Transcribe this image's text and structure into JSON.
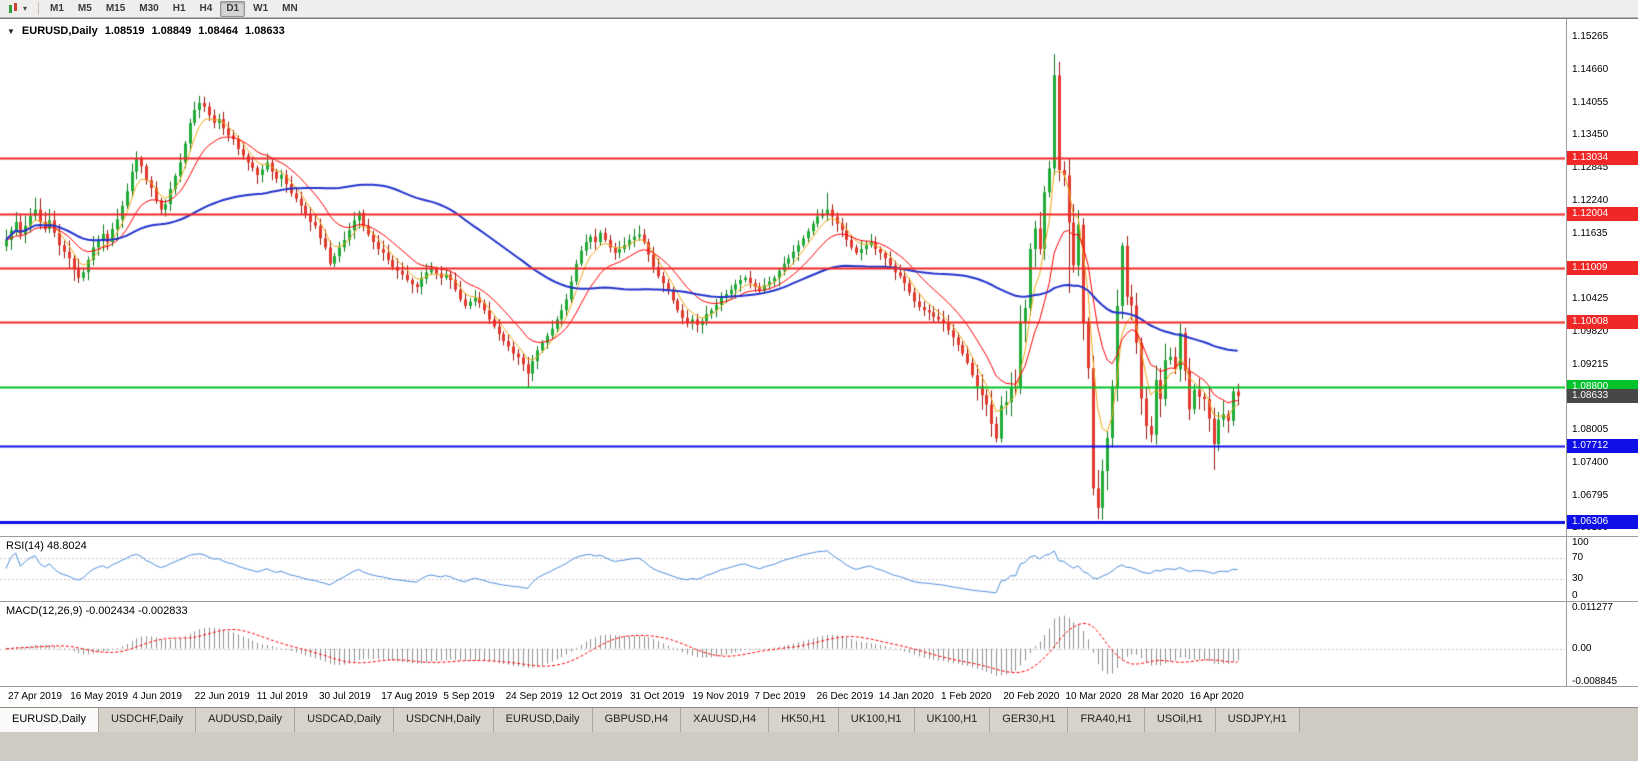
{
  "toolbar": {
    "timeframes": [
      {
        "label": "M1",
        "active": false
      },
      {
        "label": "M5",
        "active": false
      },
      {
        "label": "M15",
        "active": false
      },
      {
        "label": "M30",
        "active": false
      },
      {
        "label": "H1",
        "active": false
      },
      {
        "label": "H4",
        "active": false
      },
      {
        "label": "D1",
        "active": true
      },
      {
        "label": "W1",
        "active": false
      },
      {
        "label": "MN",
        "active": false
      }
    ]
  },
  "icons": {
    "dropdown_caret": "▾",
    "symbol_menu_caret": "▼"
  },
  "chart": {
    "title": {
      "symbol": "EURUSD,Daily",
      "open": "1.08519",
      "high": "1.08849",
      "low": "1.08464",
      "close": "1.08633"
    }
  },
  "chart_data": {
    "type": "candlestick",
    "symbol": "EURUSD",
    "timeframe": "Daily",
    "y_range": [
      1.0605,
      1.156
    ],
    "y_ticks": [
      {
        "v": 1.15265,
        "label": "1.15265"
      },
      {
        "v": 1.1466,
        "label": "1.14660"
      },
      {
        "v": 1.14055,
        "label": "1.14055"
      },
      {
        "v": 1.1345,
        "label": "1.13450"
      },
      {
        "v": 1.12845,
        "label": "1.12845"
      },
      {
        "v": 1.1224,
        "label": "1.12240"
      },
      {
        "v": 1.11635,
        "label": "1.11635"
      },
      {
        "v": 1.1103,
        "label": "1.11030"
      },
      {
        "v": 1.10425,
        "label": "1.10425"
      },
      {
        "v": 1.0982,
        "label": "1.09820"
      },
      {
        "v": 1.09215,
        "label": "1.09215"
      },
      {
        "v": 1.0861,
        "label": "1.08610"
      },
      {
        "v": 1.08005,
        "label": "1.08005"
      },
      {
        "v": 1.074,
        "label": "1.07400"
      },
      {
        "v": 1.06795,
        "label": "1.06795"
      },
      {
        "v": 1.0619,
        "label": "1.06190"
      }
    ],
    "x_labels": [
      "27 Apr 2019",
      "16 May 2019",
      "4 Jun 2019",
      "22 Jun 2019",
      "11 Jul 2019",
      "30 Jul 2019",
      "17 Aug 2019",
      "5 Sep 2019",
      "24 Sep 2019",
      "12 Oct 2019",
      "31 Oct 2019",
      "19 Nov 2019",
      "7 Dec 2019",
      "26 Dec 2019",
      "14 Jan 2020",
      "1 Feb 2020",
      "20 Feb 2020",
      "10 Mar 2020",
      "28 Mar 2020",
      "16 Apr 2020"
    ],
    "first_open": 1.114,
    "closes": [
      1.1152,
      1.117,
      1.1185,
      1.1162,
      1.1178,
      1.1196,
      1.1208,
      1.1185,
      1.1172,
      1.1188,
      1.1165,
      1.1142,
      1.113,
      1.1118,
      1.1098,
      1.1082,
      1.1092,
      1.1115,
      1.1138,
      1.1152,
      1.1163,
      1.1148,
      1.1172,
      1.119,
      1.1215,
      1.1242,
      1.1278,
      1.1302,
      1.1288,
      1.1262,
      1.1248,
      1.1225,
      1.1208,
      1.1218,
      1.1246,
      1.127,
      1.1295,
      1.133,
      1.1368,
      1.1392,
      1.1405,
      1.1398,
      1.1382,
      1.1368,
      1.1375,
      1.1358,
      1.1345,
      1.1338,
      1.132,
      1.1308,
      1.1295,
      1.1285,
      1.1272,
      1.1282,
      1.1295,
      1.1278,
      1.1265,
      1.1272,
      1.1255,
      1.1238,
      1.1228,
      1.1215,
      1.1198,
      1.1185,
      1.1178,
      1.1155,
      1.1138,
      1.1108,
      1.1122,
      1.1138,
      1.1152,
      1.117,
      1.1188,
      1.1202,
      1.1178,
      1.1162,
      1.1148,
      1.1135,
      1.1128,
      1.1115,
      1.1102,
      1.1095,
      1.1088,
      1.1078,
      1.107,
      1.1065,
      1.108,
      1.1092,
      1.1098,
      1.109,
      1.1082,
      1.1088,
      1.1078,
      1.106,
      1.1042,
      1.103,
      1.1038,
      1.1045,
      1.1035,
      1.1022,
      1.1005,
      1.0992,
      1.0978,
      1.0965,
      1.0955,
      1.0942,
      1.0935,
      1.0922,
      1.0905,
      1.0928,
      1.0948,
      1.0962,
      1.0975,
      1.0988,
      1.1005,
      1.1022,
      1.1042,
      1.1075,
      1.1108,
      1.1132,
      1.1148,
      1.1158,
      1.1148,
      1.1165,
      1.1152,
      1.1138,
      1.1128,
      1.1135,
      1.1142,
      1.1152,
      1.1158,
      1.1162,
      1.1148,
      1.1125,
      1.1102,
      1.1085,
      1.1072,
      1.1058,
      1.104,
      1.1022,
      1.1008,
      1.0998,
      1.1005,
      1.0995,
      1.1002,
      1.1015,
      1.1022,
      1.1032,
      1.1045,
      1.1052,
      1.106,
      1.107,
      1.1078,
      1.1082,
      1.1072,
      1.1065,
      1.1058,
      1.1068,
      1.1075,
      1.1082,
      1.1095,
      1.1108,
      1.1118,
      1.113,
      1.1142,
      1.1155,
      1.1168,
      1.1182,
      1.1195,
      1.12,
      1.1208,
      1.1195,
      1.1182,
      1.117,
      1.1152,
      1.1138,
      1.1128,
      1.1135,
      1.1142,
      1.1148,
      1.1135,
      1.1128,
      1.1118,
      1.1105,
      1.1092,
      1.1085,
      1.1072,
      1.1055,
      1.1038,
      1.1028,
      1.1022,
      1.1018,
      1.101,
      1.1005,
      1.0998,
      1.0985,
      1.0972,
      1.0958,
      1.0942,
      1.0925,
      1.0902,
      1.0882,
      1.0865,
      1.0848,
      1.0812,
      1.0785,
      1.0846,
      1.0852,
      1.0881,
      1.088,
      1.0999,
      1.1026,
      1.1135,
      1.1173,
      1.1135,
      1.124,
      1.1284,
      1.1456,
      1.1281,
      1.1271,
      1.1184,
      1.1105,
      1.118,
      1.0998,
      1.0915,
      1.0693,
      1.0657,
      1.0725,
      1.0786,
      1.0881,
      1.103,
      1.1141,
      1.1047,
      1.1031,
      1.0962,
      1.0859,
      1.0808,
      1.0792,
      1.0893,
      1.0858,
      1.093,
      1.0936,
      1.0913,
      1.098,
      1.091,
      1.0839,
      1.0875,
      1.0862,
      1.0858,
      1.0822,
      1.0775,
      1.082,
      1.083,
      1.0818,
      1.0872,
      1.08633
    ],
    "wick_overrides": {
      "40": {
        "h": 1.1418
      },
      "108": {
        "l": 1.0879
      },
      "170": {
        "h": 1.1239
      },
      "205": {
        "l": 1.0778
      },
      "217": {
        "h": 1.1495
      },
      "220": {
        "l": 1.1054
      },
      "225": {
        "l": 1.068
      },
      "226": {
        "l": 1.0636
      },
      "227": {
        "l": 1.0635
      },
      "231": {
        "h": 1.1147
      },
      "250": {
        "l": 1.0727
      }
    },
    "colors": {
      "bull": "#21ac37",
      "bear": "#e23a2e",
      "bull_line": "#0f7a1e",
      "bear_line": "#9c1a10"
    },
    "moving_averages": [
      {
        "period": 5,
        "method": "ema",
        "color": "#eaa817",
        "width": 1
      },
      {
        "period": 13,
        "method": "ema",
        "color": "#ff0000",
        "width": 1
      },
      {
        "period": 55,
        "method": "sma",
        "color": "#2233cc",
        "width": 2
      }
    ],
    "levels": [
      {
        "price": 1.13034,
        "label": "1.13034",
        "color": "#f02727",
        "width": 2,
        "type": "resistance"
      },
      {
        "price": 1.12004,
        "label": "1.12004",
        "color": "#f02727",
        "width": 2,
        "type": "resistance"
      },
      {
        "price": 1.11009,
        "label": "1.11009",
        "color": "#f02727",
        "width": 2,
        "type": "resistance"
      },
      {
        "price": 1.10008,
        "label": "1.10008",
        "color": "#f02727",
        "width": 2,
        "type": "resistance"
      },
      {
        "price": 1.088,
        "label": "1.08800",
        "color": "#00c22a",
        "width": 2,
        "type": "pivot"
      },
      {
        "price": 1.07712,
        "label": "1.07712",
        "color": "#0f0fe8",
        "width": 2,
        "type": "support"
      },
      {
        "price": 1.06306,
        "label": "1.06306",
        "color": "#0f0fe8",
        "width": 3,
        "type": "support"
      }
    ],
    "current_price": {
      "price": 1.08633,
      "label": "1.08633",
      "color": "#474747"
    },
    "rsi": {
      "label": "RSI(14) 48.8024",
      "period": 14,
      "value": "48.8024",
      "color": "#4f90dc",
      "level_lines": [
        70,
        30
      ],
      "axis_labels": [
        {
          "v": 100,
          "label": "100"
        },
        {
          "v": 70,
          "label": "70"
        },
        {
          "v": 30,
          "label": "30"
        },
        {
          "v": 0,
          "label": "0"
        }
      ]
    },
    "macd": {
      "label": "MACD(12,26,9) -0.002434 -0.002833",
      "fast": 12,
      "slow": 26,
      "signal_period": 9,
      "values": [
        "-0.002434",
        "-0.002833"
      ],
      "hist_color": "#909090",
      "signal_color": "#ff0000",
      "range": [
        -0.0095,
        0.0122
      ],
      "axis_labels": [
        {
          "v": 0.011277,
          "label": "0.011277"
        },
        {
          "v": 0,
          "label": "0.00"
        },
        {
          "v": -0.008845,
          "label": "-0.008845"
        }
      ]
    }
  },
  "tabs": [
    {
      "label": "EURUSD,Daily",
      "active": true
    },
    {
      "label": "USDCHF,Daily",
      "active": false
    },
    {
      "label": "AUDUSD,Daily",
      "active": false
    },
    {
      "label": "USDCAD,Daily",
      "active": false
    },
    {
      "label": "USDCNH,Daily",
      "active": false
    },
    {
      "label": "EURUSD,Daily",
      "active": false
    },
    {
      "label": "GBPUSD,H4",
      "active": false
    },
    {
      "label": "XAUUSD,H4",
      "active": false
    },
    {
      "label": "HK50,H1",
      "active": false
    },
    {
      "label": "UK100,H1",
      "active": false
    },
    {
      "label": "UK100,H1",
      "active": false
    },
    {
      "label": "GER30,H1",
      "active": false
    },
    {
      "label": "FRA40,H1",
      "active": false
    },
    {
      "label": "USOil,H1",
      "active": false
    },
    {
      "label": "USDJPY,H1",
      "active": false
    }
  ]
}
